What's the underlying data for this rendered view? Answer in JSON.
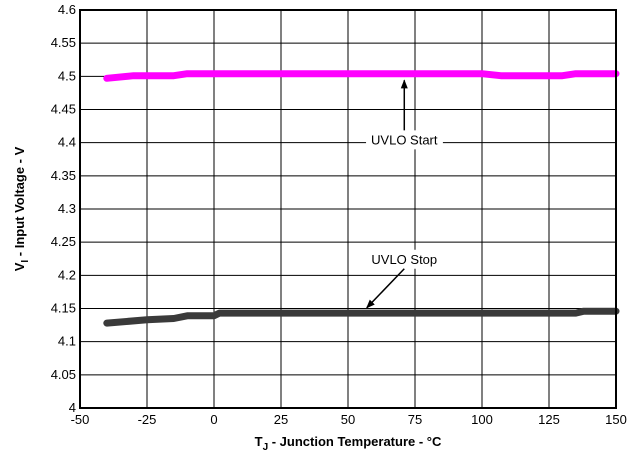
{
  "chart_data": {
    "type": "line",
    "xlabel": {
      "main": "T",
      "sub": "J",
      "rest": " - Junction Temperature - °C"
    },
    "ylabel": {
      "main": "V",
      "sub": "I",
      "rest": " - Input Voltage - V"
    },
    "xlim": [
      -50,
      150
    ],
    "ylim": [
      4.0,
      4.6
    ],
    "xticks": [
      -50,
      -25,
      0,
      25,
      50,
      75,
      100,
      125,
      150
    ],
    "xtick_labels": [
      "-50",
      "-25",
      "0",
      "25",
      "50",
      "75",
      "100",
      "125",
      "150"
    ],
    "yticks": [
      4.0,
      4.05,
      4.1,
      4.15,
      4.2,
      4.25,
      4.3,
      4.35,
      4.4,
      4.45,
      4.5,
      4.55,
      4.6
    ],
    "ytick_labels": [
      "4",
      "4.05",
      "4.1",
      "4.15",
      "4.2",
      "4.25",
      "4.3",
      "4.35",
      "4.4",
      "4.45",
      "4.5",
      "4.55",
      "4.6"
    ],
    "grid": true,
    "series": [
      {
        "color": "#ff00ff",
        "points": [
          [
            -40,
            4.497
          ],
          [
            -30,
            4.501
          ],
          [
            -15,
            4.501
          ],
          [
            -10,
            4.504
          ],
          [
            100,
            4.504
          ],
          [
            107,
            4.501
          ],
          [
            130,
            4.501
          ],
          [
            135,
            4.504
          ],
          [
            150,
            4.504
          ]
        ]
      },
      {
        "color": "#3a3a3a",
        "points": [
          [
            -40,
            4.128
          ],
          [
            -25,
            4.133
          ],
          [
            -15,
            4.135
          ],
          [
            -10,
            4.139
          ],
          [
            0,
            4.139
          ],
          [
            2,
            4.143
          ],
          [
            135,
            4.143
          ],
          [
            138,
            4.146
          ],
          [
            150,
            4.146
          ]
        ]
      }
    ],
    "annotations": [
      {
        "text": "UVLO Start",
        "label_at": [
          71,
          4.405
        ],
        "arrow_to": [
          71,
          4.5
        ]
      },
      {
        "text": "UVLO Stop",
        "label_at": [
          71,
          4.225
        ],
        "arrow_to": [
          57,
          4.145
        ]
      }
    ]
  }
}
